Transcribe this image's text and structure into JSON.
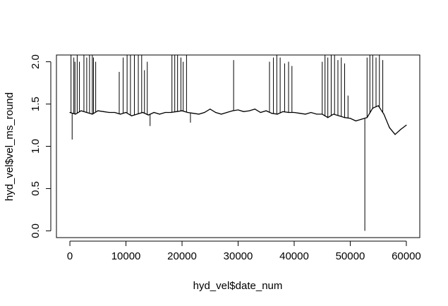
{
  "chart_data": {
    "type": "line",
    "title": "",
    "xlabel": "hyd_vel$date_num",
    "ylabel": "hyd_vel$vel_ms_round",
    "xlim": [
      -2400,
      62400
    ],
    "ylim": [
      -0.08,
      2.08
    ],
    "xticks": [
      0,
      10000,
      20000,
      30000,
      40000,
      50000,
      60000
    ],
    "xtick_labels": [
      "0",
      "10000",
      "20000",
      "30000",
      "40000",
      "50000",
      "60000"
    ],
    "yticks": [
      0.0,
      0.5,
      1.0,
      1.5,
      2.0
    ],
    "ytick_labels": [
      "0.0",
      "0.5",
      "1.0",
      "1.5",
      "2.0"
    ],
    "grid": false,
    "line_color": "#000000",
    "series": [
      {
        "x": [
          0,
          1000,
          2000,
          3000,
          4000,
          5000,
          6000,
          7000,
          8000,
          9000,
          10000,
          11000,
          12000,
          13000,
          14000,
          15000,
          16000,
          17000,
          18000,
          19000,
          20000,
          21000,
          22000,
          23000,
          24000,
          25000,
          26000,
          27000,
          28000,
          29000,
          30000,
          31000,
          32000,
          33000,
          34000,
          35000,
          36000,
          37000,
          38000,
          39000,
          40000,
          41000,
          42000,
          43000,
          44000,
          45000,
          46000,
          47000,
          48000,
          49000,
          50000,
          51000,
          52000,
          53000,
          54000,
          55000,
          56000,
          57000,
          58000,
          59000,
          60000
        ],
        "values": [
          1.4,
          1.38,
          1.42,
          1.4,
          1.38,
          1.42,
          1.41,
          1.4,
          1.4,
          1.38,
          1.4,
          1.36,
          1.38,
          1.4,
          1.37,
          1.4,
          1.38,
          1.4,
          1.4,
          1.41,
          1.42,
          1.4,
          1.39,
          1.38,
          1.4,
          1.44,
          1.4,
          1.38,
          1.4,
          1.42,
          1.43,
          1.41,
          1.42,
          1.44,
          1.4,
          1.42,
          1.39,
          1.38,
          1.41,
          1.4,
          1.4,
          1.39,
          1.38,
          1.4,
          1.38,
          1.38,
          1.34,
          1.38,
          1.36,
          1.34,
          1.33,
          1.3,
          1.32,
          1.34,
          1.45,
          1.48,
          1.38,
          1.22,
          1.14,
          1.2,
          1.25
        ],
        "spikes": [
          {
            "x": 200,
            "y": 2.08
          },
          {
            "x": 400,
            "y": 1.08
          },
          {
            "x": 700,
            "y": 2.05
          },
          {
            "x": 900,
            "y": 2.0
          },
          {
            "x": 1300,
            "y": 2.08
          },
          {
            "x": 1700,
            "y": 2.0
          },
          {
            "x": 2500,
            "y": 2.08
          },
          {
            "x": 3000,
            "y": 2.05
          },
          {
            "x": 3500,
            "y": 2.08
          },
          {
            "x": 4000,
            "y": 2.08
          },
          {
            "x": 4200,
            "y": 2.05
          },
          {
            "x": 4600,
            "y": 2.0
          },
          {
            "x": 8800,
            "y": 1.88
          },
          {
            "x": 9500,
            "y": 2.05
          },
          {
            "x": 10200,
            "y": 2.08
          },
          {
            "x": 10800,
            "y": 2.08
          },
          {
            "x": 11500,
            "y": 2.08
          },
          {
            "x": 12200,
            "y": 2.08
          },
          {
            "x": 12800,
            "y": 2.08
          },
          {
            "x": 13300,
            "y": 1.9
          },
          {
            "x": 13800,
            "y": 2.0
          },
          {
            "x": 14300,
            "y": 1.24
          },
          {
            "x": 18200,
            "y": 2.08
          },
          {
            "x": 18700,
            "y": 2.08
          },
          {
            "x": 19200,
            "y": 2.08
          },
          {
            "x": 19800,
            "y": 2.05
          },
          {
            "x": 20200,
            "y": 2.0
          },
          {
            "x": 20800,
            "y": 2.08
          },
          {
            "x": 21500,
            "y": 1.28
          },
          {
            "x": 29200,
            "y": 2.02
          },
          {
            "x": 35600,
            "y": 2.0
          },
          {
            "x": 36300,
            "y": 2.05
          },
          {
            "x": 36900,
            "y": 2.08
          },
          {
            "x": 37500,
            "y": 2.05
          },
          {
            "x": 38300,
            "y": 1.98
          },
          {
            "x": 39000,
            "y": 2.0
          },
          {
            "x": 39600,
            "y": 1.95
          },
          {
            "x": 45000,
            "y": 2.0
          },
          {
            "x": 45500,
            "y": 2.08
          },
          {
            "x": 46000,
            "y": 2.05
          },
          {
            "x": 46600,
            "y": 2.08
          },
          {
            "x": 47200,
            "y": 2.08
          },
          {
            "x": 47800,
            "y": 2.02
          },
          {
            "x": 48400,
            "y": 2.05
          },
          {
            "x": 49000,
            "y": 1.98
          },
          {
            "x": 49600,
            "y": 1.6
          },
          {
            "x": 52600,
            "y": 0.0
          },
          {
            "x": 53000,
            "y": 2.05
          },
          {
            "x": 53500,
            "y": 2.08
          },
          {
            "x": 54000,
            "y": 2.08
          },
          {
            "x": 54600,
            "y": 2.05
          },
          {
            "x": 55200,
            "y": 2.08
          },
          {
            "x": 55800,
            "y": 2.02
          }
        ]
      }
    ]
  }
}
